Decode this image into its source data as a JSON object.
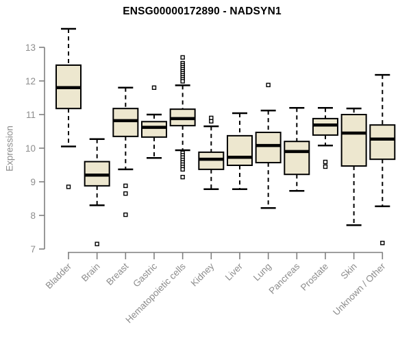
{
  "chart_data": {
    "type": "boxplot",
    "title": "ENSG00000172890 - NADSYN1",
    "ylabel": "Expression",
    "ylim": [
      6.8,
      13.6
    ],
    "yticks": [
      7,
      8,
      9,
      10,
      11,
      12,
      13
    ],
    "grid": false,
    "categories": [
      "Bladder",
      "Brain",
      "Breast",
      "Gastric",
      "Hematopoietic cells",
      "Kidney",
      "Liver",
      "Lung",
      "Pancreas",
      "Prostate",
      "Skin",
      "Unknown / Other"
    ],
    "groups": [
      {
        "label": "Bladder",
        "low": 10.05,
        "q1": 11.18,
        "median": 11.8,
        "q3": 12.47,
        "high": 13.55,
        "outliers": [
          8.85
        ]
      },
      {
        "label": "Brain",
        "low": 8.3,
        "q1": 8.88,
        "median": 9.2,
        "q3": 9.6,
        "high": 10.27,
        "outliers": [
          7.15
        ]
      },
      {
        "label": "Breast",
        "low": 9.37,
        "q1": 10.35,
        "median": 10.82,
        "q3": 11.18,
        "high": 11.8,
        "outliers": [
          8.88,
          8.65,
          8.02
        ]
      },
      {
        "label": "Gastric",
        "low": 9.71,
        "q1": 10.33,
        "median": 10.62,
        "q3": 10.79,
        "high": 11.0,
        "outliers": [
          11.8
        ]
      },
      {
        "label": "Hematopoietic cells",
        "low": 9.94,
        "q1": 10.67,
        "median": 10.88,
        "q3": 11.16,
        "high": 11.87,
        "outliers": [
          12.7,
          12.53,
          12.47,
          12.41,
          12.35,
          12.29,
          12.23,
          12.17,
          12.11,
          12.05,
          11.99,
          9.86,
          9.79,
          9.72,
          9.65,
          9.58,
          9.51,
          9.44,
          9.37,
          9.14
        ]
      },
      {
        "label": "Kidney",
        "low": 8.78,
        "q1": 9.37,
        "median": 9.67,
        "q3": 9.88,
        "high": 10.65,
        "outliers": [
          10.9,
          10.8
        ]
      },
      {
        "label": "Liver",
        "low": 8.78,
        "q1": 9.49,
        "median": 9.73,
        "q3": 10.37,
        "high": 11.04,
        "outliers": []
      },
      {
        "label": "Lung",
        "low": 8.22,
        "q1": 9.57,
        "median": 10.08,
        "q3": 10.47,
        "high": 11.12,
        "outliers": [
          11.88
        ]
      },
      {
        "label": "Pancreas",
        "low": 8.73,
        "q1": 9.22,
        "median": 9.9,
        "q3": 10.2,
        "high": 11.2,
        "outliers": []
      },
      {
        "label": "Prostate",
        "low": 10.08,
        "q1": 10.39,
        "median": 10.69,
        "q3": 10.88,
        "high": 11.2,
        "outliers": [
          9.59,
          9.45
        ]
      },
      {
        "label": "Skin",
        "low": 7.71,
        "q1": 9.47,
        "median": 10.45,
        "q3": 11.0,
        "high": 11.18,
        "outliers": []
      },
      {
        "label": "Unknown / Other",
        "low": 8.27,
        "q1": 9.67,
        "median": 10.27,
        "q3": 10.69,
        "high": 12.18,
        "outliers": [
          7.18
        ]
      }
    ],
    "colors": {
      "box_fill": "#EDE7CF",
      "box_border": "#000000",
      "median": "#000000",
      "whisker": "#000000",
      "outlier_stroke": "#000000",
      "axis": "#7f7f7f",
      "tick_label": "#8c8c8c",
      "title": "#000000",
      "background": "#ffffff"
    }
  }
}
